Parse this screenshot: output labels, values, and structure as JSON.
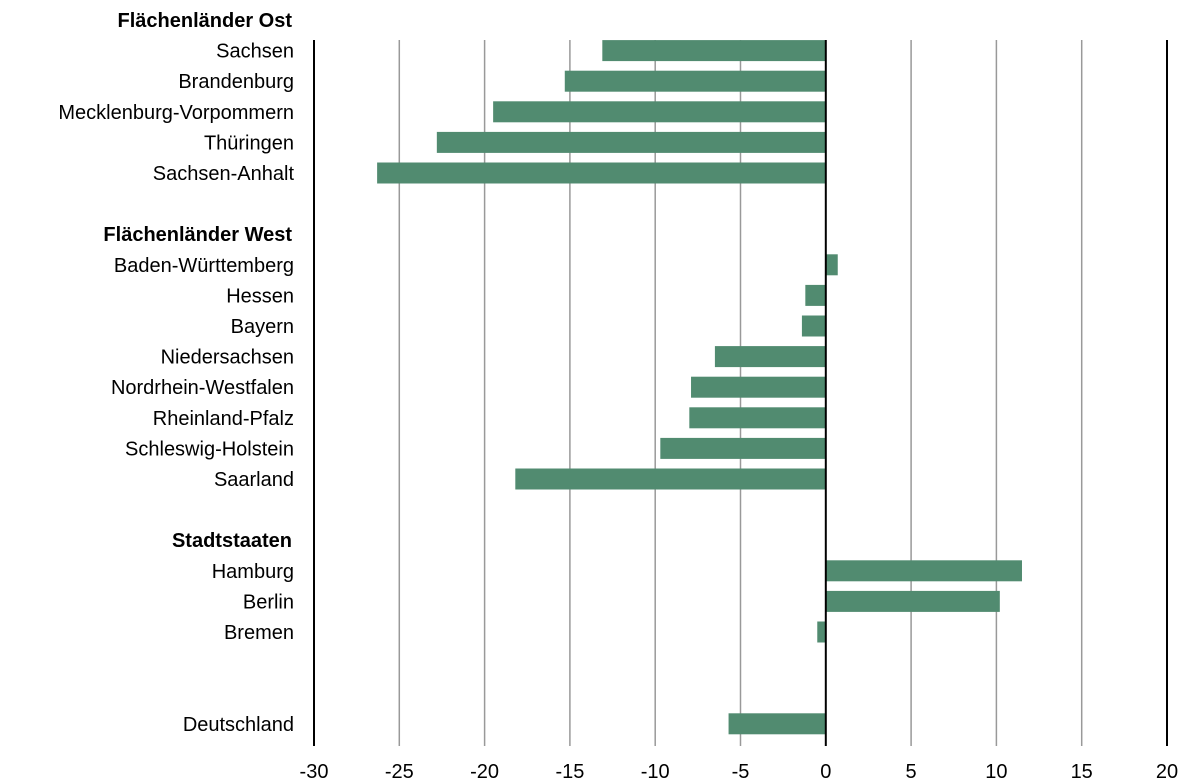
{
  "chart_data": {
    "type": "bar",
    "orientation": "horizontal",
    "xlim": [
      -30,
      20
    ],
    "xticks": [
      -30,
      -25,
      -20,
      -15,
      -10,
      -5,
      0,
      5,
      10,
      15,
      20
    ],
    "grid": true,
    "bar_color": "#518b70",
    "groups": [
      {
        "label": "Flächenländer Ost",
        "items": [
          {
            "label": "Sachsen",
            "value": -13.1
          },
          {
            "label": "Brandenburg",
            "value": -15.3
          },
          {
            "label": "Mecklenburg-Vorpommern",
            "value": -19.5
          },
          {
            "label": "Thüringen",
            "value": -22.8
          },
          {
            "label": "Sachsen-Anhalt",
            "value": -26.3
          }
        ]
      },
      {
        "label": "Flächenländer West",
        "items": [
          {
            "label": "Baden-Württemberg",
            "value": 0.7
          },
          {
            "label": "Hessen",
            "value": -1.2
          },
          {
            "label": "Bayern",
            "value": -1.4
          },
          {
            "label": "Niedersachsen",
            "value": -6.5
          },
          {
            "label": "Nordrhein-Westfalen",
            "value": -7.9
          },
          {
            "label": "Rheinland-Pfalz",
            "value": -8.0
          },
          {
            "label": "Schleswig-Holstein",
            "value": -9.7
          },
          {
            "label": "Saarland",
            "value": -18.2
          }
        ]
      },
      {
        "label": "Stadtstaaten",
        "items": [
          {
            "label": "Hamburg",
            "value": 11.5
          },
          {
            "label": "Berlin",
            "value": 10.2
          },
          {
            "label": "Bremen",
            "value": -0.5
          }
        ]
      },
      {
        "label": "",
        "items": [
          {
            "label": "Deutschland",
            "value": -5.7
          }
        ]
      }
    ]
  }
}
